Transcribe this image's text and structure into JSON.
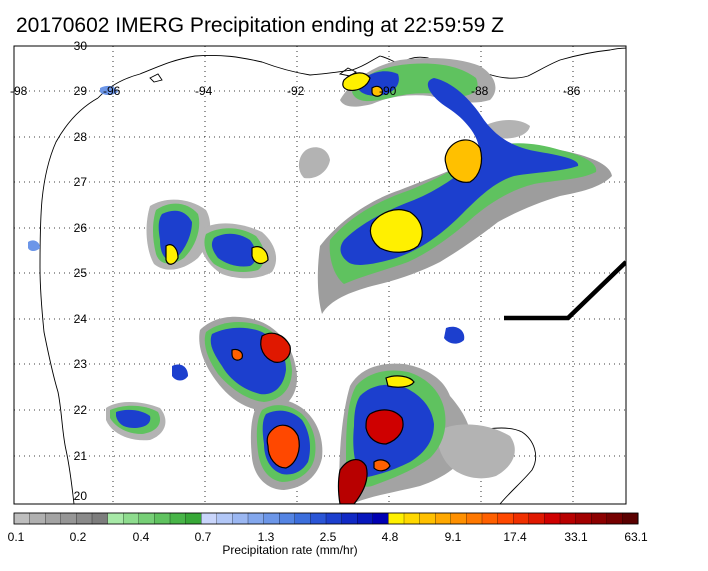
{
  "title": "20170602 IMERG Precipitation ending at 22:59:59 Z",
  "map": {
    "lon_ticks": [
      "-98",
      "-96",
      "-94",
      "-92",
      "-90",
      "-88",
      "-86"
    ],
    "lat_ticks": [
      "30",
      "29",
      "28",
      "27",
      "26",
      "25",
      "24",
      "23",
      "22",
      "21",
      "20"
    ]
  },
  "colorbar": {
    "label": "Precipitation rate (mm/hr)",
    "tick_labels": [
      "0.1",
      "0.2",
      "0.4",
      "0.7",
      "1.3",
      "2.5",
      "4.8",
      "9.1",
      "17.4",
      "33.1",
      "63.1"
    ],
    "colors": [
      "#bebebe",
      "#b0b0b0",
      "#a3a3a3",
      "#969696",
      "#8a8a8a",
      "#7d7d7d",
      "#a7e9a7",
      "#8edc8e",
      "#76cf76",
      "#5fc25f",
      "#48b548",
      "#37a837",
      "#c9d5fb",
      "#b2c7f7",
      "#9bb7f2",
      "#83a7ed",
      "#6c96e8",
      "#5484e3",
      "#3c6edc",
      "#2a55d6",
      "#1c3fce",
      "#1029c5",
      "#0717bd",
      "#0000b2",
      "#fff000",
      "#ffd800",
      "#ffc000",
      "#ffa800",
      "#ff9000",
      "#ff7800",
      "#ff6000",
      "#ff4800",
      "#f03000",
      "#e01800",
      "#cf0000",
      "#b80000",
      "#a20000",
      "#8c0000",
      "#760000",
      "#5a0000"
    ]
  }
}
